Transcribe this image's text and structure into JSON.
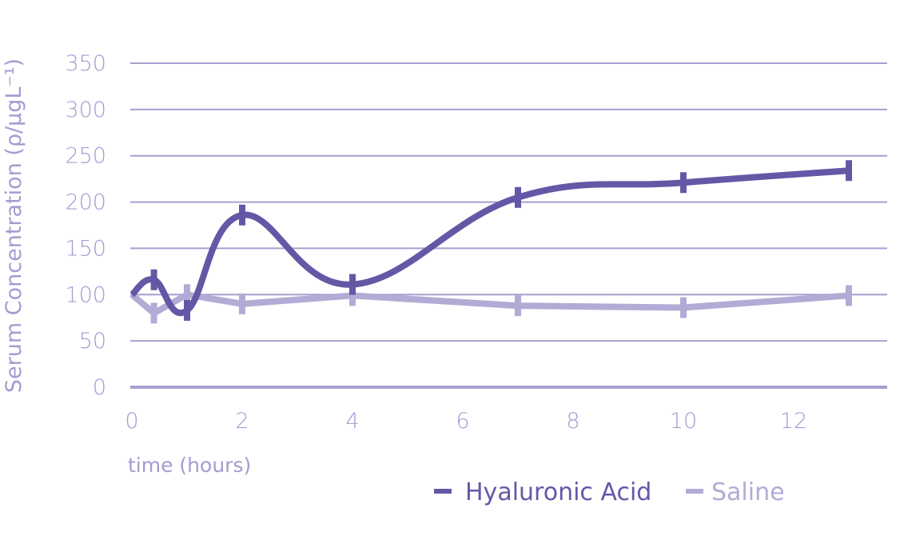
{
  "chart_data": {
    "type": "line",
    "xlabel": "time (hours)",
    "ylabel": "Serum Concentration (ρ/μgL⁻¹)",
    "xlim": [
      0,
      13.6
    ],
    "ylim": [
      0,
      350
    ],
    "x_ticks": [
      "0",
      "2",
      "4",
      "6",
      "8",
      "10",
      "12"
    ],
    "y_ticks": [
      "0",
      "50",
      "100",
      "150",
      "200",
      "250",
      "300",
      "350"
    ],
    "grid": true,
    "legend_position": "bottom-right",
    "series": [
      {
        "name": "Hyaluronic Acid",
        "color": "#6657a6",
        "smooth": true,
        "x": [
          0,
          0.4,
          1,
          2,
          4,
          7,
          10,
          13
        ],
        "y": [
          100,
          116,
          83,
          186,
          111,
          205,
          221,
          234
        ]
      },
      {
        "name": "Saline",
        "color": "#b3abd6",
        "smooth": false,
        "x": [
          0,
          0.4,
          1,
          2,
          4,
          7,
          10,
          13
        ],
        "y": [
          100,
          80,
          100,
          90,
          99,
          88,
          86,
          99
        ]
      }
    ]
  }
}
